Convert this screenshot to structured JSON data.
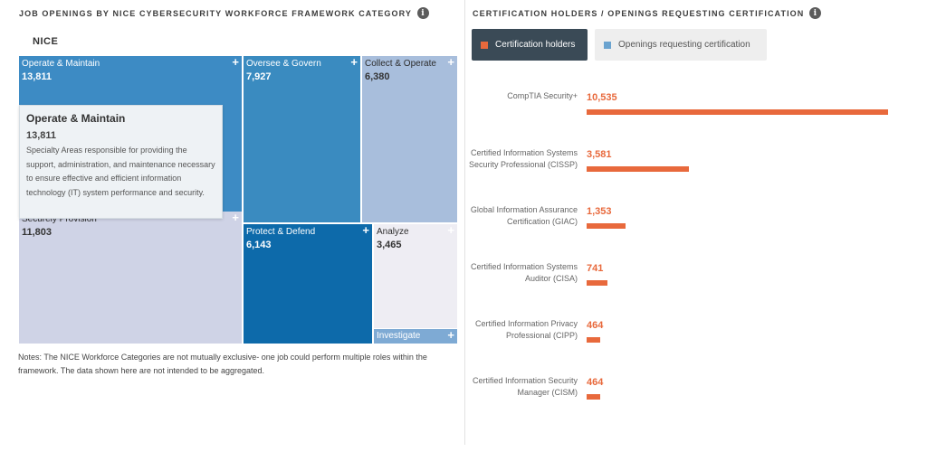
{
  "left_panel": {
    "title": "JOB OPENINGS BY NICE CYBERSECURITY WORKFORCE FRAMEWORK CATEGORY",
    "info_icon": "i",
    "root_label": "NICE",
    "notes": "Notes: The NICE Workforce Categories are not mutually exclusive- one job could perform multiple roles within the framework. The data shown here are not intended to be aggregated."
  },
  "tooltip": {
    "title": "Operate & Maintain",
    "value": "13,811",
    "description": "Specialty Areas responsible for providing the support, administration, and maintenance necessary to ensure effective and efficient information technology (IT) system performance and security."
  },
  "right_panel": {
    "title": "CERTIFICATION HOLDERS / OPENINGS REQUESTING CERTIFICATION",
    "info_icon": "i",
    "toggle_active": "Certification holders",
    "toggle_inactive": "Openings requesting certification"
  },
  "colors": {
    "accent": "#e8693c",
    "toggle_dark": "#3a4a56",
    "inactive_swatch": "#6aa3cf"
  },
  "chart_data": [
    {
      "type": "treemap",
      "title": "Job openings by NICE Cybersecurity Workforce Framework category",
      "root": "NICE",
      "nodes": [
        {
          "name": "Operate & Maintain",
          "value": 13811,
          "label": "13,811",
          "color": "#3d8bc4"
        },
        {
          "name": "Securely Provision",
          "value": 11803,
          "label": "11,803",
          "color": "#cfd3e6"
        },
        {
          "name": "Oversee & Govern",
          "value": 7927,
          "label": "7,927",
          "color": "#3a8bc0"
        },
        {
          "name": "Collect & Operate",
          "value": 6380,
          "label": "6,380",
          "color": "#a8bedc"
        },
        {
          "name": "Protect & Defend",
          "value": 6143,
          "label": "6,143",
          "color": "#0d6aaa"
        },
        {
          "name": "Analyze",
          "value": 3465,
          "label": "3,465",
          "color": "#eeedf3"
        },
        {
          "name": "Investigate",
          "value": null,
          "label": "",
          "color": "#7eaad4"
        }
      ]
    },
    {
      "type": "bar",
      "orientation": "horizontal",
      "title": "Certification holders",
      "categories": [
        "CompTIA Security+",
        "Certified Information Systems Security Professional (CISSP)",
        "Global Information Assurance Certification (GIAC)",
        "Certified Information Systems Auditor (CISA)",
        "Certified Information Privacy Professional (CIPP)",
        "Certified Information Security Manager (CISM)"
      ],
      "values": [
        10535,
        3581,
        1353,
        741,
        464,
        464
      ],
      "labels": [
        "10,535",
        "3,581",
        "1,353",
        "741",
        "464",
        "464"
      ]
    }
  ]
}
